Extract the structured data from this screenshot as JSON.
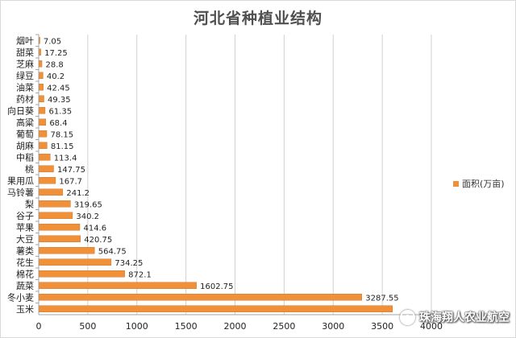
{
  "chart_data": {
    "type": "bar",
    "orientation": "horizontal",
    "title": "河北省种植业结构",
    "categories": [
      "烟叶",
      "甜菜",
      "芝麻",
      "绿豆",
      "油菜",
      "药材",
      "向日葵",
      "高粱",
      "葡萄",
      "胡麻",
      "中稻",
      "桃",
      "果用瓜",
      "马铃薯",
      "梨",
      "谷子",
      "苹果",
      "大豆",
      "薯类",
      "花生",
      "棉花",
      "蔬菜",
      "冬小麦",
      "玉米"
    ],
    "series": [
      {
        "name": "面积(万亩)",
        "values": [
          7.05,
          17.25,
          28.8,
          40.2,
          42.45,
          49.35,
          61.35,
          68.4,
          78.15,
          81.15,
          113.4,
          147.75,
          167.7,
          241.2,
          319.65,
          340.2,
          414.6,
          420.75,
          564.75,
          734.25,
          872.1,
          1602.75,
          3287.55,
          3600
        ],
        "labels": [
          "7.05",
          "17.25",
          "28.8",
          "40.2",
          "42.45",
          "49.35",
          "61.35",
          "68.4",
          "78.15",
          "81.15",
          "113.4",
          "147.75",
          "167.7",
          "241.2",
          "319.65",
          "340.2",
          "414.6",
          "420.75",
          "564.75",
          "734.25",
          "872.1",
          "1602.75",
          "3287.55",
          ""
        ]
      }
    ],
    "xlim": [
      0,
      4000
    ],
    "xticks": [
      0,
      500,
      1000,
      1500,
      2000,
      2500,
      3000,
      3500,
      4000
    ],
    "grid": "vertical",
    "legend": "right",
    "colors": {
      "bar": "#f0913a",
      "bar_edge": "#c46a1e",
      "grid": "#d0d0d0",
      "axis": "#a6a6a6",
      "text": "#222222"
    }
  },
  "watermark": {
    "icon": "camera-lens-icon",
    "text": "珠海翔人农业航空"
  }
}
